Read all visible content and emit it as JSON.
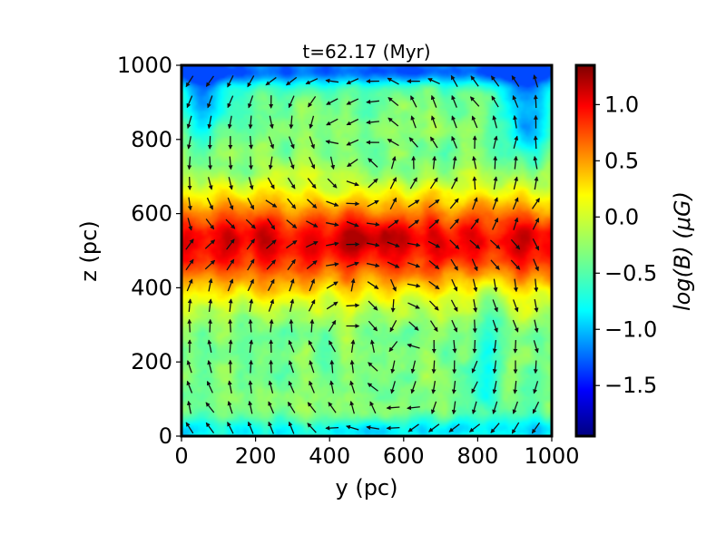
{
  "chart_data": {
    "type": "heatmap",
    "title": "t=62.17 (Myr)",
    "xlabel": "y (pc)",
    "ylabel": "z (pc)",
    "xlim": [
      0,
      1000
    ],
    "ylim": [
      0,
      1000
    ],
    "x_ticks": [
      0,
      200,
      400,
      600,
      800,
      1000
    ],
    "y_ticks": [
      0,
      200,
      400,
      600,
      800,
      1000
    ],
    "colorbar": {
      "label": "log(B) (μG)",
      "range": [
        -1.95,
        1.35
      ],
      "ticks": [
        -1.5,
        -1.0,
        -0.5,
        0.0,
        0.5,
        1.0
      ],
      "tick_labels": [
        "−1.5",
        "−1.0",
        "−0.5",
        "0.0",
        "0.5",
        "1.0"
      ],
      "colormap": "jet"
    },
    "field_description": {
      "midplane_z": 520,
      "peak_logB": 1.0,
      "background_logB": -0.3,
      "cavities_low_logB": -1.0
    },
    "overlay": "magnetic field direction arrows"
  }
}
